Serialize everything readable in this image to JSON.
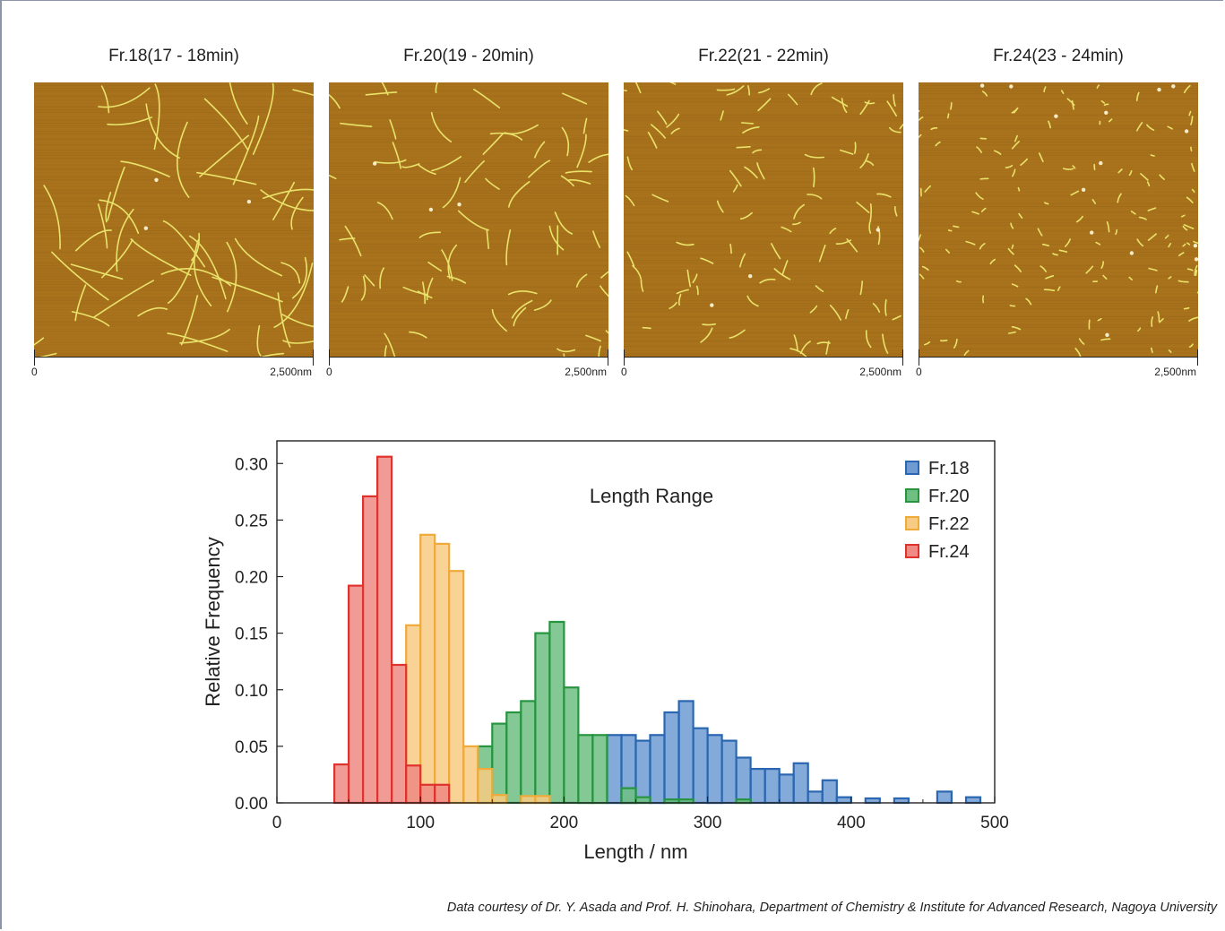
{
  "panels": [
    {
      "title": "Fr.18(17 - 18min)",
      "scale_start": "0",
      "scale_end": "2,500nm",
      "fibers": "long",
      "seed": 18
    },
    {
      "title": "Fr.20(19 - 20min)",
      "scale_start": "0",
      "scale_end": "2,500nm",
      "fibers": "medium",
      "seed": 20
    },
    {
      "title": "Fr.22(21 - 22min)",
      "scale_start": "0",
      "scale_end": "2,500nm",
      "fibers": "short",
      "seed": 22
    },
    {
      "title": "Fr.24(23 - 24min)",
      "scale_start": "0",
      "scale_end": "2,500nm",
      "fibers": "tiny",
      "seed": 24
    }
  ],
  "afm_colors": {
    "background": "#a7711c",
    "fiber": "#e9e36a",
    "particle": "#f4ecc8"
  },
  "chart_data": {
    "type": "bar",
    "title": "Length Range",
    "xlabel": "Length / nm",
    "ylabel": "Relative Frequency",
    "xlim": [
      0,
      500
    ],
    "ylim": [
      0,
      0.32
    ],
    "xticks": [
      "0",
      "100",
      "200",
      "300",
      "400",
      "500"
    ],
    "yticks": [
      "0.00",
      "0.05",
      "0.10",
      "0.15",
      "0.20",
      "0.25",
      "0.30"
    ],
    "bin_width": 10,
    "legend_position": "top-right",
    "series": [
      {
        "name": "Fr.18",
        "fill": "#6d9bd2",
        "stroke": "#2a66b1",
        "bins": [
          [
            230,
            0.06
          ],
          [
            240,
            0.06
          ],
          [
            250,
            0.055
          ],
          [
            260,
            0.06
          ],
          [
            270,
            0.08
          ],
          [
            280,
            0.09
          ],
          [
            290,
            0.066
          ],
          [
            300,
            0.06
          ],
          [
            310,
            0.055
          ],
          [
            320,
            0.04
          ],
          [
            330,
            0.03
          ],
          [
            340,
            0.03
          ],
          [
            350,
            0.025
          ],
          [
            360,
            0.035
          ],
          [
            370,
            0.01
          ],
          [
            380,
            0.02
          ],
          [
            390,
            0.005
          ],
          [
            410,
            0.004
          ],
          [
            430,
            0.004
          ],
          [
            460,
            0.01
          ],
          [
            480,
            0.005
          ]
        ]
      },
      {
        "name": "Fr.20",
        "fill": "#6fbf82",
        "stroke": "#27953f",
        "bins": [
          [
            140,
            0.05
          ],
          [
            150,
            0.07
          ],
          [
            160,
            0.08
          ],
          [
            170,
            0.09
          ],
          [
            180,
            0.15
          ],
          [
            190,
            0.16
          ],
          [
            200,
            0.102
          ],
          [
            210,
            0.06
          ],
          [
            220,
            0.06
          ],
          [
            240,
            0.013
          ],
          [
            250,
            0.005
          ],
          [
            270,
            0.003
          ],
          [
            280,
            0.003
          ],
          [
            320,
            0.003
          ]
        ]
      },
      {
        "name": "Fr.22",
        "fill": "#f7cb82",
        "stroke": "#efaa3a",
        "bins": [
          [
            90,
            0.157
          ],
          [
            100,
            0.237
          ],
          [
            110,
            0.229
          ],
          [
            120,
            0.205
          ],
          [
            130,
            0.05
          ],
          [
            140,
            0.03
          ],
          [
            150,
            0.007
          ],
          [
            170,
            0.006
          ],
          [
            180,
            0.006
          ]
        ]
      },
      {
        "name": "Fr.24",
        "fill": "#ef8a84",
        "stroke": "#e0312c",
        "bins": [
          [
            40,
            0.034
          ],
          [
            50,
            0.192
          ],
          [
            60,
            0.271
          ],
          [
            70,
            0.306
          ],
          [
            80,
            0.122
          ],
          [
            90,
            0.033
          ],
          [
            100,
            0.016
          ],
          [
            110,
            0.016
          ]
        ]
      }
    ]
  },
  "credit": "Data courtesy of Dr. Y. Asada and Prof. H. Shinohara, Department of Chemistry & Institute for Advanced Research, Nagoya University"
}
